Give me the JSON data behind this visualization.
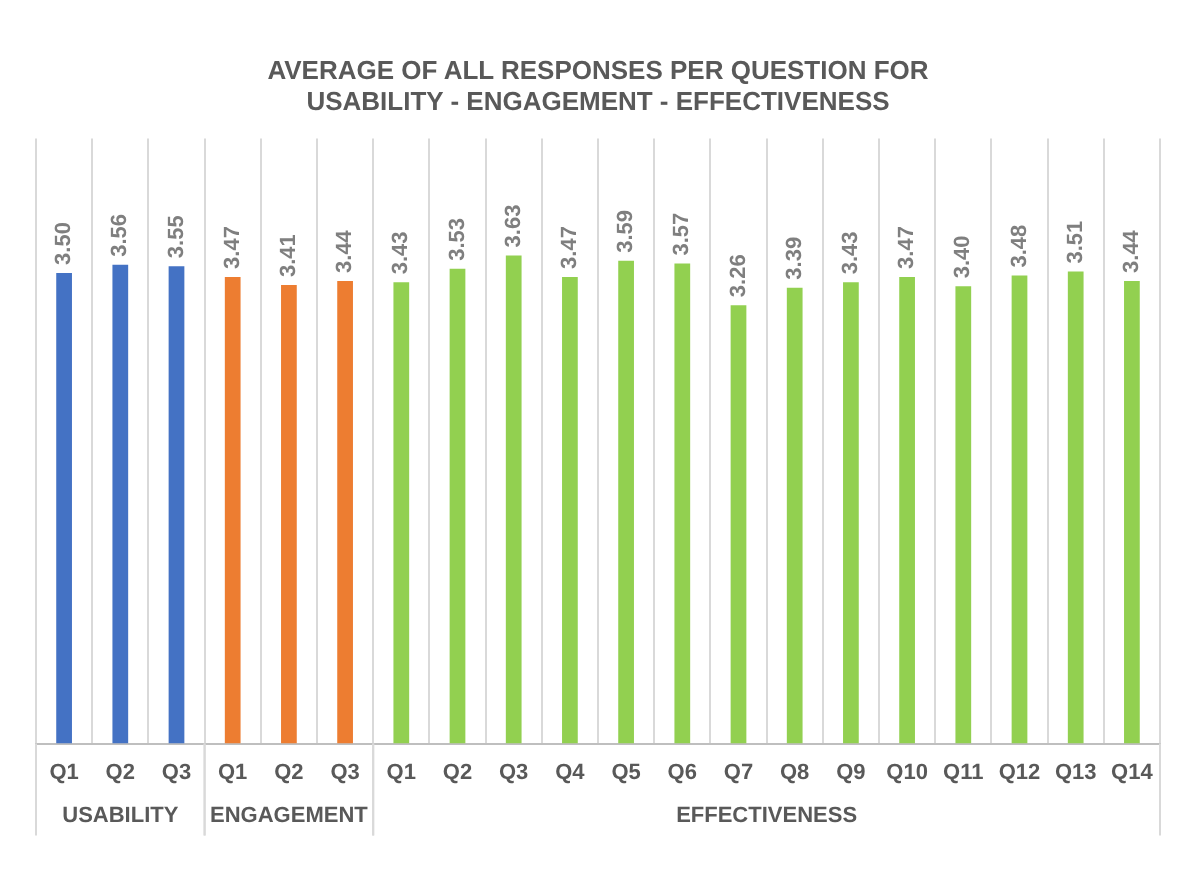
{
  "chart_data": {
    "type": "bar",
    "title": "AVERAGE OF ALL RESPONSES PER QUESTION FOR\nUSABILITY - ENGAGEMENT - EFFECTIVENESS",
    "categories": [
      "Q1",
      "Q2",
      "Q3",
      "Q1",
      "Q2",
      "Q3",
      "Q1",
      "Q2",
      "Q3",
      "Q4",
      "Q5",
      "Q6",
      "Q7",
      "Q8",
      "Q9",
      "Q10",
      "Q11",
      "Q12",
      "Q13",
      "Q14"
    ],
    "series": [
      {
        "name": "USABILITY",
        "color": "#4472c4",
        "values": [
          3.5,
          3.56,
          3.55,
          null,
          null,
          null,
          null,
          null,
          null,
          null,
          null,
          null,
          null,
          null,
          null,
          null,
          null,
          null,
          null,
          null
        ],
        "value_labels": [
          "3.50",
          "3.56",
          "3.55",
          null,
          null,
          null,
          null,
          null,
          null,
          null,
          null,
          null,
          null,
          null,
          null,
          null,
          null,
          null,
          null,
          null
        ]
      },
      {
        "name": "ENGAGEMENT",
        "color": "#ed7d31",
        "values": [
          null,
          null,
          null,
          3.47,
          3.41,
          3.44,
          null,
          null,
          null,
          null,
          null,
          null,
          null,
          null,
          null,
          null,
          null,
          null,
          null,
          null
        ],
        "value_labels": [
          null,
          null,
          null,
          "3.47",
          "3.41",
          "3.44",
          null,
          null,
          null,
          null,
          null,
          null,
          null,
          null,
          null,
          null,
          null,
          null,
          null,
          null
        ]
      },
      {
        "name": "EFFECTIVENESS",
        "color": "#92d050",
        "values": [
          null,
          null,
          null,
          null,
          null,
          null,
          3.43,
          3.53,
          3.63,
          3.47,
          3.59,
          3.57,
          3.26,
          3.39,
          3.43,
          3.47,
          3.4,
          3.48,
          3.51,
          3.44
        ],
        "value_labels": [
          null,
          null,
          null,
          null,
          null,
          null,
          "3.43",
          "3.53",
          "3.63",
          "3.47",
          "3.59",
          "3.57",
          "3.26",
          "3.39",
          "3.43",
          "3.47",
          "3.40",
          "3.48",
          "3.51",
          "3.44"
        ]
      }
    ],
    "grid": "x",
    "legend": false
  }
}
